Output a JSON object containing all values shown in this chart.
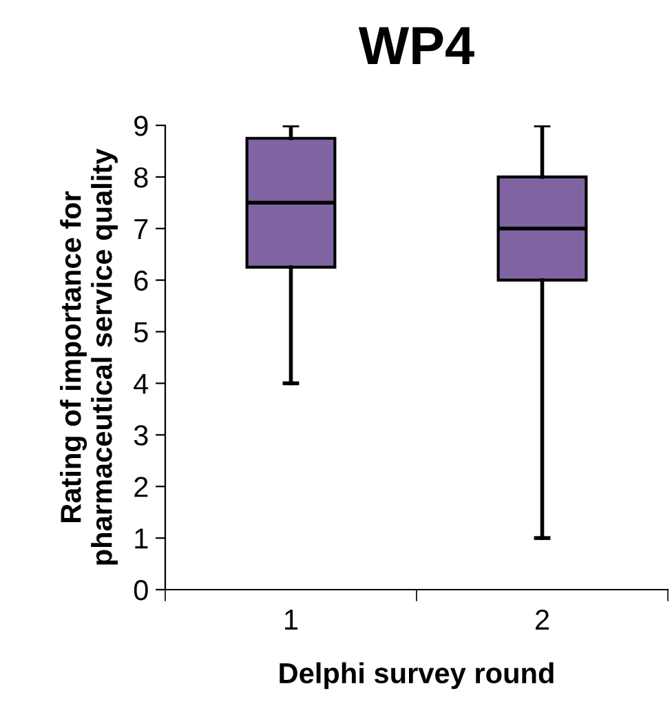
{
  "chart_data": {
    "type": "box",
    "title": "WP4",
    "xlabel": "Delphi survey round",
    "ylabel": "Rating of importance for\npharmaceutical service quality",
    "categories": [
      "1",
      "2"
    ],
    "color": "#8064a2",
    "ylim": [
      0,
      9
    ],
    "yticks": [
      0,
      1,
      2,
      3,
      4,
      5,
      6,
      7,
      8,
      9
    ],
    "grid": false,
    "boxes": [
      {
        "low": 4,
        "q1": 6.25,
        "median": 7.5,
        "q3": 8.75,
        "high": 9
      },
      {
        "low": 1,
        "q1": 6,
        "median": 7,
        "q3": 8,
        "high": 9
      }
    ]
  }
}
